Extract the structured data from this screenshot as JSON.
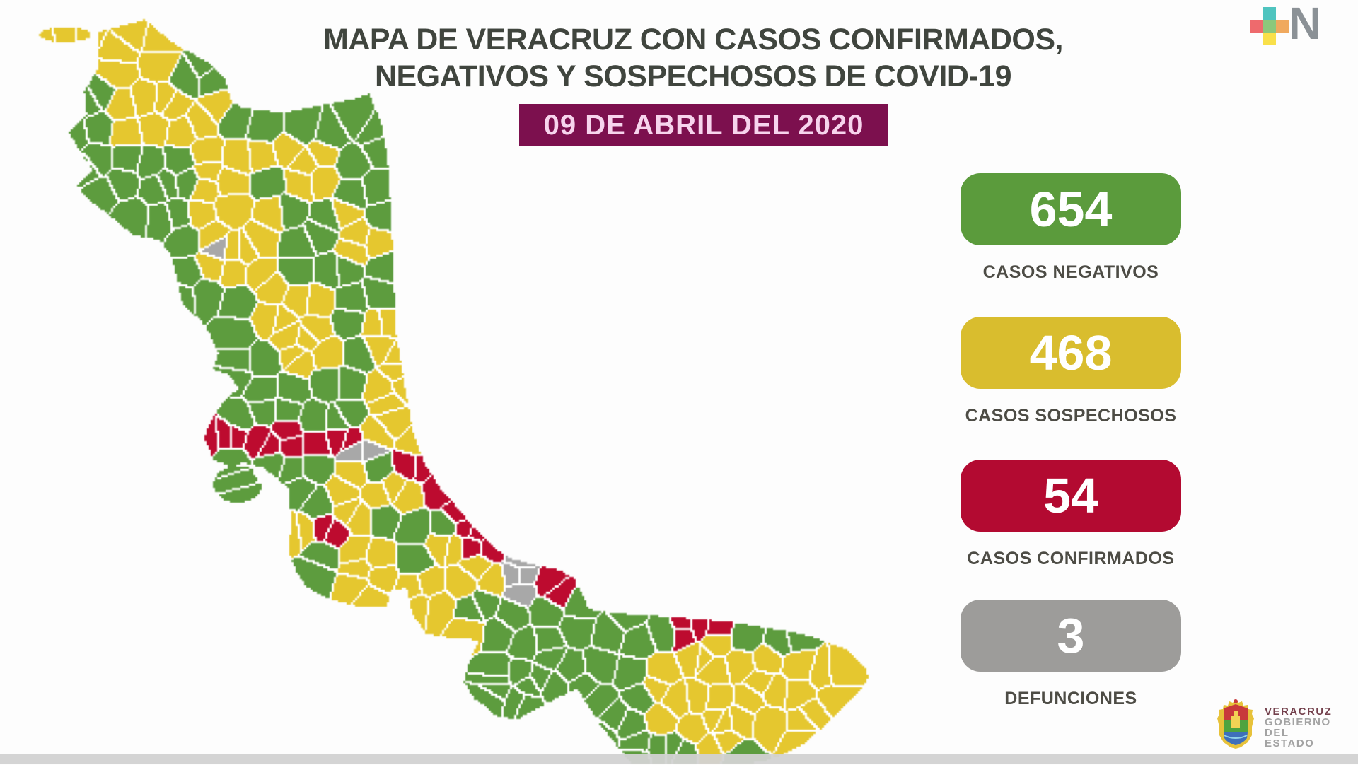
{
  "header": {
    "title_line1": "MAPA DE VERACRUZ CON CASOS CONFIRMADOS,",
    "title_line2": "NEGATIVOS Y SOSPECHOSOS DE COVID-19",
    "date": "09 DE ABRIL DEL 2020"
  },
  "stats": [
    {
      "value": "654",
      "label": "CASOS NEGATIVOS",
      "color_key": "green"
    },
    {
      "value": "468",
      "label": "CASOS SOSPECHOSOS",
      "color_key": "yellow"
    },
    {
      "value": "54",
      "label": "CASOS CONFIRMADOS",
      "color_key": "red"
    },
    {
      "value": "3",
      "label": "DEFUNCIONES",
      "color_key": "gray"
    }
  ],
  "palette": {
    "green": "#5b9b3c",
    "yellow": "#d9bd2e",
    "red": "#b30a31",
    "gray": "#9d9c9a",
    "map_green": "#5d9c3e",
    "map_yellow": "#e5c72f",
    "map_red": "#bd0b2f",
    "map_gray": "#a8a8a8",
    "map_border": "rgba(255,255,255,0.72)",
    "banner_bg": "#7c104e",
    "banner_text": "#f7d4ed",
    "title_text": "#40453e",
    "label_text": "#4d4c45"
  },
  "logos": {
    "brand": {
      "n_letter": "N",
      "square_colors": {
        "teal": "#4fc4bf",
        "coral": "#ee6a6d",
        "green": "#8cc87b",
        "orange": "#f0a95e",
        "yellow": "#f9e04a"
      },
      "n_color": "#8b9196"
    },
    "government": {
      "line1": "VERACRUZ",
      "line2": "GOBIERNO",
      "line3": "DEL ESTADO"
    }
  }
}
